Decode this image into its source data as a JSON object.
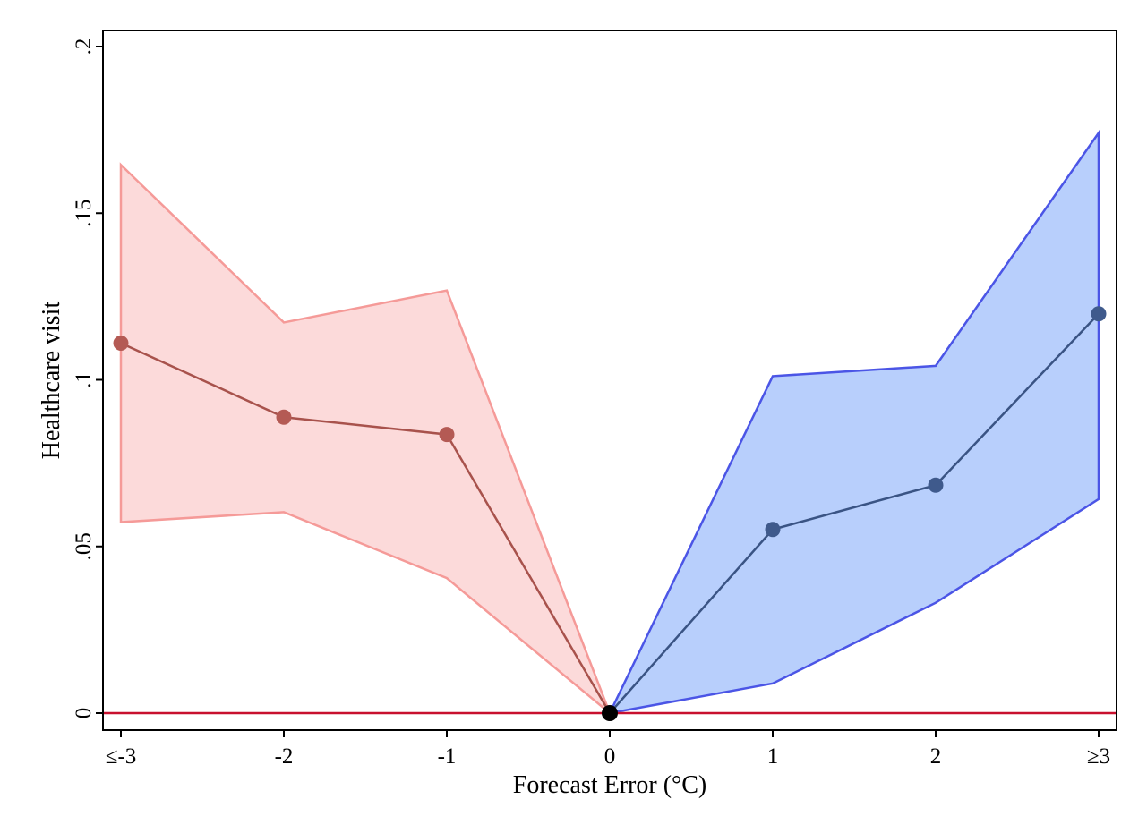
{
  "chart_data": {
    "type": "line",
    "title": "",
    "xlabel": "Forecast Error (°C)",
    "ylabel": "Healthcare visit",
    "x_ticks": [
      "≤-3",
      "-2",
      "-1",
      "0",
      "1",
      "2",
      "≥3"
    ],
    "y_ticks": [
      "0",
      ".05",
      ".1",
      ".15",
      ".2"
    ],
    "y_tick_values": [
      0,
      0.05,
      0.1,
      0.15,
      0.2
    ],
    "xlim": [
      -3.0,
      3.1
    ],
    "ylim": [
      -0.005,
      0.205
    ],
    "grid": false,
    "legend": "none",
    "reference_line": {
      "y": 0,
      "color": "#c8102e"
    },
    "series": [
      {
        "side": "negative",
        "x": [
          -3,
          -2,
          -1,
          0
        ],
        "y": [
          0.111,
          0.0888,
          0.0836,
          0.0
        ],
        "ci_lower": [
          0.0573,
          0.0603,
          0.0405,
          0.0
        ],
        "ci_upper": [
          0.1645,
          0.1172,
          0.1268,
          0.0
        ],
        "line_color": "#a8524c",
        "marker_color": "#b45a54",
        "band_fill": "#fcdada",
        "band_edge": "#f59a98"
      },
      {
        "side": "positive",
        "x": [
          0,
          1,
          2,
          3
        ],
        "y": [
          0.0,
          0.0551,
          0.0684,
          0.1198
        ],
        "ci_lower": [
          0.0,
          0.0089,
          0.0331,
          0.0642
        ],
        "ci_upper": [
          0.0,
          0.1011,
          0.1042,
          0.1741
        ],
        "line_color": "#3a5484",
        "marker_color": "#3f5a8c",
        "band_fill": "#b8cffc",
        "band_edge": "#4b55e6"
      }
    ],
    "origin_point": {
      "x": 0,
      "y": 0,
      "color": "#000000"
    }
  }
}
